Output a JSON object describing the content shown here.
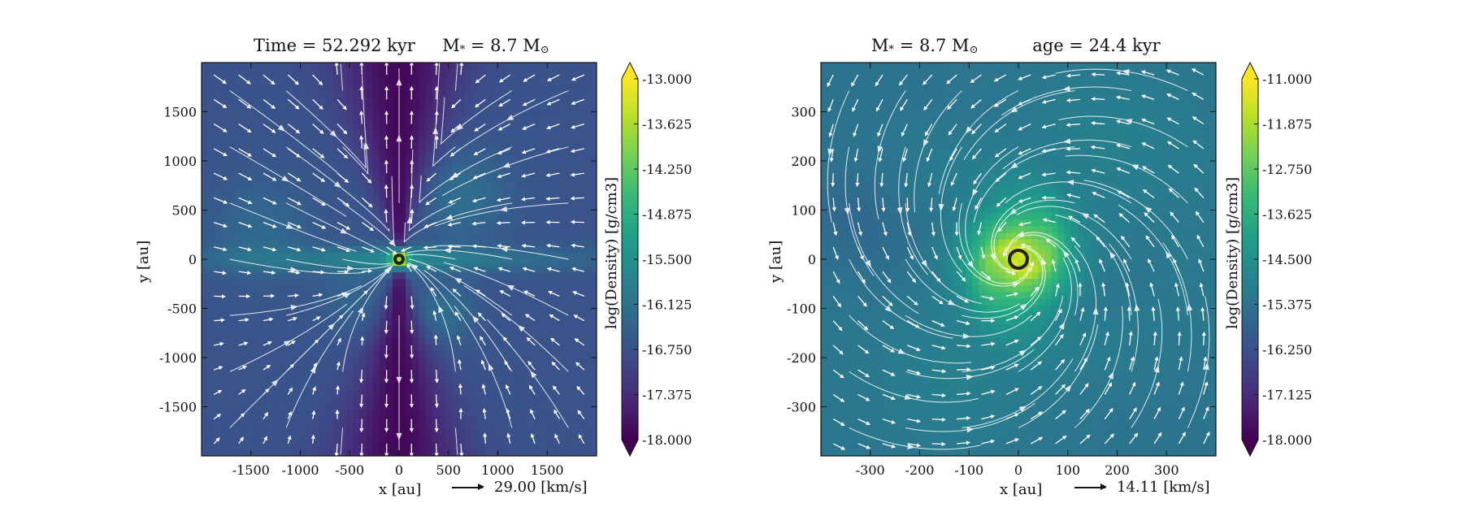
{
  "chart_data": [
    {
      "type": "heatmap",
      "title_time_label": "Time = 52.292 kyr",
      "title_mass_label": "M",
      "title_mass_sub": "*",
      "title_mass_value": "= 8.7 M",
      "title_mass_sun": "⊙",
      "xlabel": "x [au]",
      "ylabel": "y [au]",
      "xlim": [
        -2000,
        2000
      ],
      "ylim": [
        -2000,
        2000
      ],
      "xticks": [
        -1500,
        -1000,
        -500,
        0,
        500,
        1000,
        1500
      ],
      "yticks": [
        -1500,
        -1000,
        -500,
        0,
        500,
        1000,
        1500
      ],
      "xtick_labels": [
        "-1500",
        "-1000",
        "-500",
        "0",
        "500",
        "1000",
        "1500"
      ],
      "ytick_labels": [
        "-1500",
        "-1000",
        "-500",
        "0",
        "500",
        "1000",
        "1500"
      ],
      "colorbar_label": "log(Density) [g/cm3]",
      "colorbar_range": [
        -18.0,
        -13.0
      ],
      "colorbar_ticks": [
        -13.0,
        -13.625,
        -14.25,
        -14.875,
        -15.5,
        -16.125,
        -16.75,
        -17.375,
        -18.0
      ],
      "colorbar_tick_labels": [
        "-13.000",
        "-13.625",
        "-14.250",
        "-14.875",
        "-15.500",
        "-16.125",
        "-16.750",
        "-17.375",
        "-18.000"
      ],
      "colormap": "viridis",
      "overlays": "velocity streamlines and vectors",
      "reference_vector_label": "29.00 [km/s]",
      "structure": "edge-on disk along y=0 with low-density bipolar outflow cavities along the y-axis"
    },
    {
      "type": "heatmap",
      "title_mass_label": "M",
      "title_mass_sub": "*",
      "title_mass_value": "= 8.7 M",
      "title_mass_sun": "⊙",
      "title_age_label": "age = 24.4 kyr",
      "xlabel": "x [au]",
      "ylabel": "y [au]",
      "xlim": [
        -400,
        400
      ],
      "ylim": [
        -400,
        400
      ],
      "xticks": [
        -300,
        -200,
        -100,
        0,
        100,
        200,
        300
      ],
      "yticks": [
        -300,
        -200,
        -100,
        0,
        100,
        200,
        300
      ],
      "xtick_labels": [
        "-300",
        "-200",
        "-100",
        "0",
        "100",
        "200",
        "300"
      ],
      "ytick_labels": [
        "-300",
        "-200",
        "-100",
        "0",
        "100",
        "200",
        "300"
      ],
      "colorbar_label": "log(Density) [g/cm3]",
      "colorbar_range": [
        -18.0,
        -11.0
      ],
      "colorbar_ticks": [
        -11.0,
        -11.875,
        -12.75,
        -13.625,
        -14.5,
        -15.375,
        -16.25,
        -17.125,
        -18.0
      ],
      "colorbar_tick_labels": [
        "-11.000",
        "-11.875",
        "-12.750",
        "-13.625",
        "-14.500",
        "-15.375",
        "-16.250",
        "-17.125",
        "-18.000"
      ],
      "colormap": "viridis",
      "overlays": "velocity streamlines and vectors",
      "reference_vector_label": "14.11 [km/s]",
      "structure": "face-on disk with bright central density peak and spiral infall flow"
    }
  ],
  "colors": {
    "viridis": [
      "#440154",
      "#482878",
      "#3e4989",
      "#31688e",
      "#26828e",
      "#1f9e89",
      "#35b779",
      "#6ece58",
      "#b5de2b",
      "#fde725"
    ],
    "stream": "#ffffff",
    "axis": "#111111"
  }
}
